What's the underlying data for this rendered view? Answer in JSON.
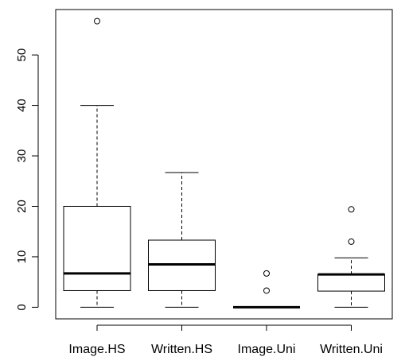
{
  "chart_data": {
    "type": "boxplot",
    "title": "",
    "xlabel": "",
    "ylabel": "",
    "ylim": [
      -2.3,
      59
    ],
    "yticks": [
      0,
      10,
      20,
      30,
      40,
      50
    ],
    "grid": false,
    "categories": [
      "Image.HS",
      "Written.HS",
      "Image.Uni",
      "Written.Uni"
    ],
    "boxes": [
      {
        "name": "Image.HS",
        "min": 0,
        "q1": 3.3,
        "median": 6.7,
        "q3": 20,
        "max": 40,
        "outliers": [
          56.7
        ]
      },
      {
        "name": "Written.HS",
        "min": 0,
        "q1": 3.3,
        "median": 8.5,
        "q3": 13.3,
        "max": 26.7,
        "outliers": []
      },
      {
        "name": "Image.Uni",
        "min": 0,
        "q1": 0,
        "median": 0,
        "q3": 0,
        "max": 0,
        "outliers": [
          3.3,
          6.7
        ]
      },
      {
        "name": "Written.Uni",
        "min": 0,
        "q1": 3.2,
        "median": 6.5,
        "q3": 6.5,
        "max": 9.8,
        "outliers": [
          13,
          19.4
        ]
      }
    ]
  }
}
